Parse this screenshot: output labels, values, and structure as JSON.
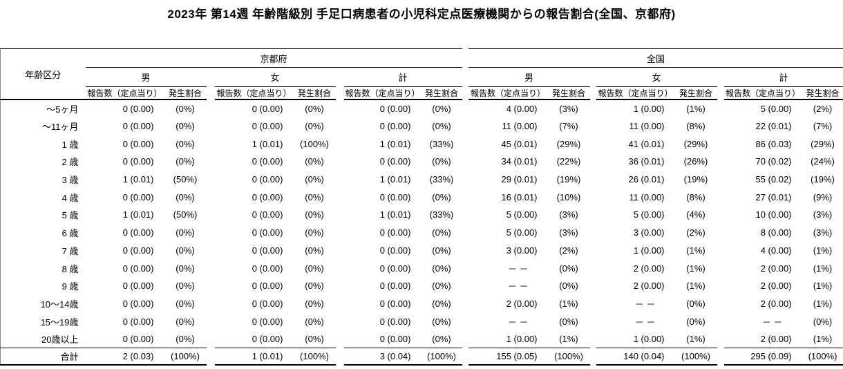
{
  "title": "2023年 第14週 年齢階級別 手足口病患者の小児科定点医療機関からの報告割合(全国、京都府)",
  "table": {
    "age_header": "年齢区分",
    "sections": [
      {
        "label": "京都府"
      },
      {
        "label": "全国"
      }
    ],
    "sex_headers": [
      "男",
      "女",
      "計"
    ],
    "col_headers": {
      "count": "報告数（定点当り）",
      "rate": "発生割合"
    },
    "rows": [
      {
        "age": "～5ヶ月",
        "cells": [
          "0 (0.00)",
          "(0%)",
          "0 (0.00)",
          "(0%)",
          "0 (0.00)",
          "(0%)",
          "4 (0.00)",
          "(3%)",
          "1 (0.00)",
          "(1%)",
          "5 (0.00)",
          "(2%)"
        ]
      },
      {
        "age": "～11ヶ月",
        "cells": [
          "0 (0.00)",
          "(0%)",
          "0 (0.00)",
          "(0%)",
          "0 (0.00)",
          "(0%)",
          "11 (0.00)",
          "(7%)",
          "11 (0.00)",
          "(8%)",
          "22 (0.01)",
          "(7%)"
        ]
      },
      {
        "age": "1 歳",
        "cells": [
          "0 (0.00)",
          "(0%)",
          "1 (0.01)",
          "(100%)",
          "1 (0.01)",
          "(33%)",
          "45 (0.01)",
          "(29%)",
          "41 (0.01)",
          "(29%)",
          "86 (0.03)",
          "(29%)"
        ]
      },
      {
        "age": "2 歳",
        "cells": [
          "0 (0.00)",
          "(0%)",
          "0 (0.00)",
          "(0%)",
          "0 (0.00)",
          "(0%)",
          "34 (0.01)",
          "(22%)",
          "36 (0.01)",
          "(26%)",
          "70 (0.02)",
          "(24%)"
        ]
      },
      {
        "age": "3 歳",
        "cells": [
          "1 (0.01)",
          "(50%)",
          "0 (0.00)",
          "(0%)",
          "1 (0.01)",
          "(33%)",
          "29 (0.01)",
          "(19%)",
          "26 (0.01)",
          "(19%)",
          "55 (0.02)",
          "(19%)"
        ]
      },
      {
        "age": "4 歳",
        "cells": [
          "0 (0.00)",
          "(0%)",
          "0 (0.00)",
          "(0%)",
          "0 (0.00)",
          "(0%)",
          "16 (0.01)",
          "(10%)",
          "11 (0.00)",
          "(8%)",
          "27 (0.01)",
          "(9%)"
        ]
      },
      {
        "age": "5 歳",
        "cells": [
          "1 (0.01)",
          "(50%)",
          "0 (0.00)",
          "(0%)",
          "1 (0.01)",
          "(33%)",
          "5 (0.00)",
          "(3%)",
          "5 (0.00)",
          "(4%)",
          "10 (0.00)",
          "(3%)"
        ]
      },
      {
        "age": "6 歳",
        "cells": [
          "0 (0.00)",
          "(0%)",
          "0 (0.00)",
          "(0%)",
          "0 (0.00)",
          "(0%)",
          "5 (0.00)",
          "(3%)",
          "3 (0.00)",
          "(2%)",
          "8 (0.00)",
          "(3%)"
        ]
      },
      {
        "age": "7 歳",
        "cells": [
          "0 (0.00)",
          "(0%)",
          "0 (0.00)",
          "(0%)",
          "0 (0.00)",
          "(0%)",
          "3 (0.00)",
          "(2%)",
          "1 (0.00)",
          "(1%)",
          "4 (0.00)",
          "(1%)"
        ]
      },
      {
        "age": "8 歳",
        "cells": [
          "0 (0.00)",
          "(0%)",
          "0 (0.00)",
          "(0%)",
          "0 (0.00)",
          "(0%)",
          "－ －　",
          "(0%)",
          "2 (0.00)",
          "(1%)",
          "2 (0.00)",
          "(1%)"
        ]
      },
      {
        "age": "9 歳",
        "cells": [
          "0 (0.00)",
          "(0%)",
          "0 (0.00)",
          "(0%)",
          "0 (0.00)",
          "(0%)",
          "－ －　",
          "(0%)",
          "2 (0.00)",
          "(1%)",
          "2 (0.00)",
          "(1%)"
        ]
      },
      {
        "age": "10～14歳",
        "cells": [
          "0 (0.00)",
          "(0%)",
          "0 (0.00)",
          "(0%)",
          "0 (0.00)",
          "(0%)",
          "2 (0.00)",
          "(1%)",
          "－ －　",
          "(0%)",
          "2 (0.00)",
          "(1%)"
        ]
      },
      {
        "age": "15～19歳",
        "cells": [
          "0 (0.00)",
          "(0%)",
          "0 (0.00)",
          "(0%)",
          "0 (0.00)",
          "(0%)",
          "－ －　",
          "(0%)",
          "－ －　",
          "(0%)",
          "－ －　",
          "(0%)"
        ]
      },
      {
        "age": "20歳以上",
        "cells": [
          "0 (0.00)",
          "(0%)",
          "0 (0.00)",
          "(0%)",
          "0 (0.00)",
          "(0%)",
          "1 (0.00)",
          "(1%)",
          "1 (0.00)",
          "(1%)",
          "2 (0.00)",
          "(1%)"
        ]
      }
    ],
    "total_row": {
      "age": "合計",
      "cells": [
        "2 (0.03)",
        "(100%)",
        "1 (0.01)",
        "(100%)",
        "3 (0.04)",
        "(100%)",
        "155 (0.05)",
        "(100%)",
        "140 (0.04)",
        "(100%)",
        "295 (0.09)",
        "(100%)"
      ]
    }
  }
}
